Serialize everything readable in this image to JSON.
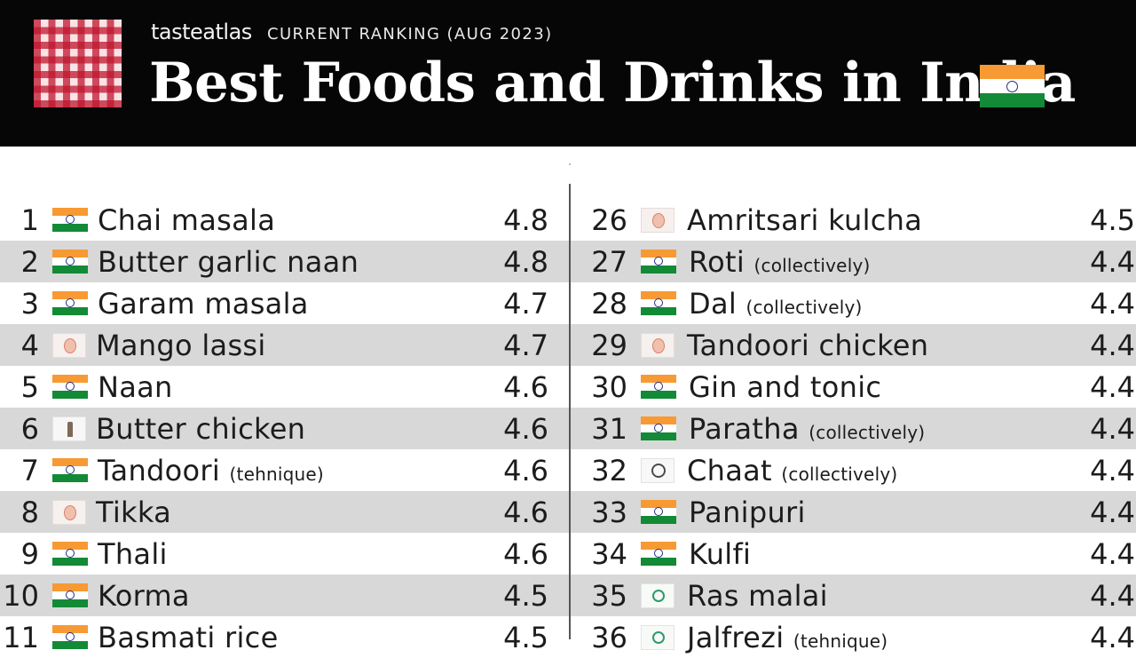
{
  "header": {
    "brand": "tasteatlas",
    "subtitle": "CURRENT RANKING (AUG 2023)",
    "title": "Best Foods and Drinks in India"
  },
  "colors": {
    "header_bg": "#060606",
    "stripe_bg": "#d8d8d8",
    "flag_saffron": "#f79a33",
    "flag_green": "#138a36",
    "logo_red": "#be1630"
  },
  "left_column": [
    {
      "rank": "1",
      "icon": "india-flag-icon",
      "name": "Chai masala",
      "note": "",
      "score": "4.8"
    },
    {
      "rank": "2",
      "icon": "india-flag-icon",
      "name": "Butter garlic naan",
      "note": "",
      "score": "4.8"
    },
    {
      "rank": "3",
      "icon": "india-flag-icon",
      "name": "Garam masala",
      "note": "",
      "score": "4.7"
    },
    {
      "rank": "4",
      "icon": "state-seal-icon",
      "name": "Mango lassi",
      "note": "",
      "score": "4.7"
    },
    {
      "rank": "5",
      "icon": "india-flag-icon",
      "name": "Naan",
      "note": "",
      "score": "4.6"
    },
    {
      "rank": "6",
      "icon": "state-emblem-icon",
      "name": "Butter chicken",
      "note": "",
      "score": "4.6"
    },
    {
      "rank": "7",
      "icon": "india-flag-icon",
      "name": "Tandoori",
      "note": "(tehnique)",
      "score": "4.6"
    },
    {
      "rank": "8",
      "icon": "state-seal-icon",
      "name": "Tikka",
      "note": "",
      "score": "4.6"
    },
    {
      "rank": "9",
      "icon": "india-flag-icon",
      "name": "Thali",
      "note": "",
      "score": "4.6"
    },
    {
      "rank": "10",
      "icon": "india-flag-icon",
      "name": "Korma",
      "note": "",
      "score": "4.5"
    },
    {
      "rank": "11",
      "icon": "india-flag-icon",
      "name": "Basmati rice",
      "note": "",
      "score": "4.5"
    }
  ],
  "right_column": [
    {
      "rank": "26",
      "icon": "state-seal-icon",
      "name": "Amritsari kulcha",
      "note": "",
      "score": "4.5"
    },
    {
      "rank": "27",
      "icon": "india-flag-icon",
      "name": "Roti",
      "note": "(collectively)",
      "score": "4.4"
    },
    {
      "rank": "28",
      "icon": "india-flag-icon",
      "name": "Dal",
      "note": "(collectively)",
      "score": "4.4"
    },
    {
      "rank": "29",
      "icon": "state-seal-icon",
      "name": "Tandoori chicken",
      "note": "",
      "score": "4.4"
    },
    {
      "rank": "30",
      "icon": "india-flag-icon",
      "name": "Gin and tonic",
      "note": "",
      "score": "4.4"
    },
    {
      "rank": "31",
      "icon": "india-flag-icon",
      "name": "Paratha",
      "note": "(collectively)",
      "score": "4.4"
    },
    {
      "rank": "32",
      "icon": "wheel-emblem-icon",
      "name": "Chaat",
      "note": "(collectively)",
      "score": "4.4"
    },
    {
      "rank": "33",
      "icon": "india-flag-icon",
      "name": "Panipuri",
      "note": "",
      "score": "4.4"
    },
    {
      "rank": "34",
      "icon": "india-flag-icon",
      "name": "Kulfi",
      "note": "",
      "score": "4.4"
    },
    {
      "rank": "35",
      "icon": "green-seal-icon",
      "name": "Ras malai",
      "note": "",
      "score": "4.4"
    },
    {
      "rank": "36",
      "icon": "green-seal-icon",
      "name": "Jalfrezi",
      "note": "(tehnique)",
      "score": "4.4"
    }
  ]
}
